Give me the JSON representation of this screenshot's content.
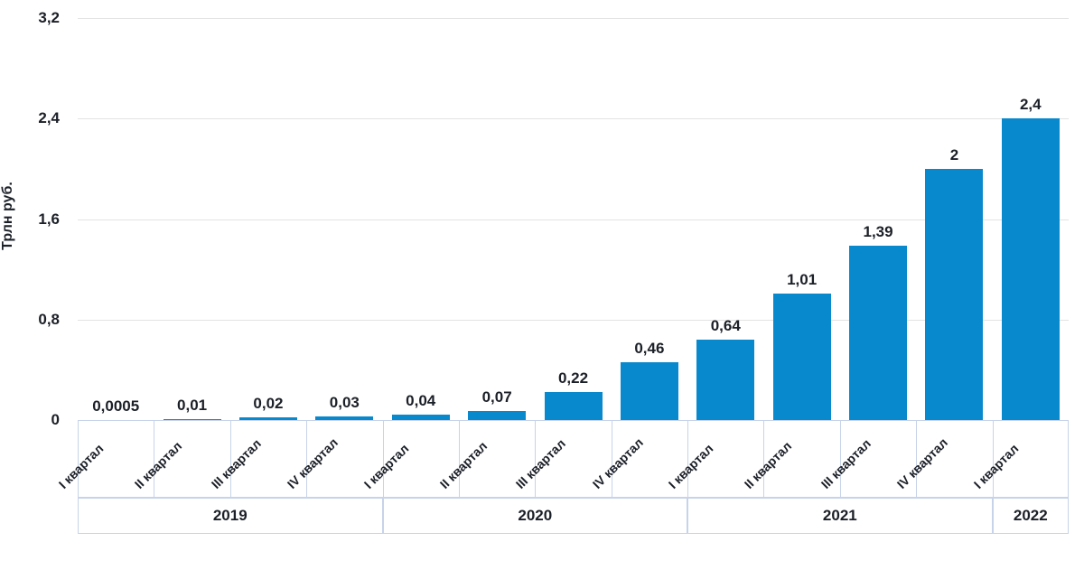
{
  "chart_data": {
    "type": "bar",
    "title": "",
    "ylabel": "Трлн руб.",
    "xlabel": "",
    "ylim": [
      0,
      3.2
    ],
    "grid": true,
    "legend": false,
    "bar_color": "#0989cd",
    "y_ticks": [
      {
        "value": 3.2,
        "label": "3,2"
      },
      {
        "value": 2.4,
        "label": "2,4"
      },
      {
        "value": 1.6,
        "label": "1,6"
      },
      {
        "value": 0.8,
        "label": "0,8"
      },
      {
        "value": 0,
        "label": "0"
      }
    ],
    "categories": [
      "I квартал",
      "II квартал",
      "III квартал",
      "IV квартал",
      "I квартал",
      "II квартал",
      "III квартал",
      "IV квартал",
      "I квартал",
      "II квартал",
      "III квартал",
      "IV квартал",
      "I квартал"
    ],
    "values": [
      0.0005,
      0.01,
      0.02,
      0.03,
      0.04,
      0.07,
      0.22,
      0.46,
      0.64,
      1.01,
      1.39,
      2,
      2.4
    ],
    "value_labels": [
      "0,0005",
      "0,01",
      "0,02",
      "0,03",
      "0,04",
      "0,07",
      "0,22",
      "0,46",
      "0,64",
      "1,01",
      "1,39",
      "2",
      "2,4"
    ],
    "year_groups": [
      {
        "label": "2019",
        "span": 4
      },
      {
        "label": "2020",
        "span": 4
      },
      {
        "label": "2021",
        "span": 4
      },
      {
        "label": "2022",
        "span": 1
      }
    ]
  },
  "colors": {
    "bar": "#0989cd",
    "gridline": "#e3e3e3",
    "table_border": "#c7d3e8",
    "text": "#1b1f27",
    "background": "#ffffff"
  }
}
